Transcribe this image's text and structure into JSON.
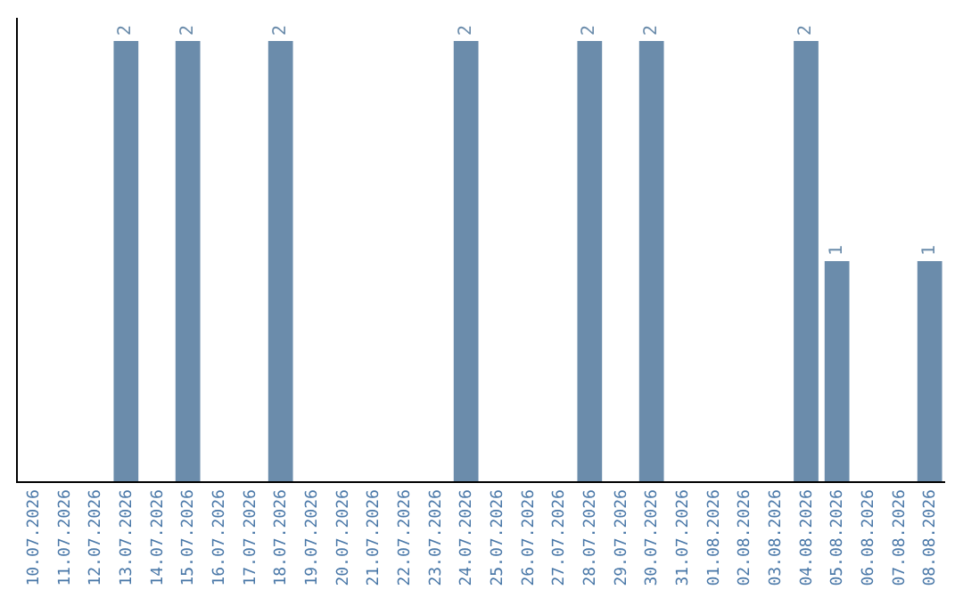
{
  "chart_data": {
    "type": "bar",
    "categories": [
      "10.07.2026",
      "11.07.2026",
      "12.07.2026",
      "13.07.2026",
      "14.07.2026",
      "15.07.2026",
      "16.07.2026",
      "17.07.2026",
      "18.07.2026",
      "19.07.2026",
      "20.07.2026",
      "21.07.2026",
      "22.07.2026",
      "23.07.2026",
      "24.07.2026",
      "25.07.2026",
      "26.07.2026",
      "27.07.2026",
      "28.07.2026",
      "29.07.2026",
      "30.07.2026",
      "31.07.2026",
      "01.08.2026",
      "02.08.2026",
      "03.08.2026",
      "04.08.2026",
      "05.08.2026",
      "06.08.2026",
      "07.08.2026",
      "08.08.2026"
    ],
    "values": [
      0,
      0,
      0,
      2,
      0,
      2,
      0,
      0,
      2,
      0,
      0,
      0,
      0,
      0,
      2,
      0,
      0,
      0,
      2,
      0,
      2,
      0,
      0,
      0,
      0,
      2,
      1,
      0,
      0,
      1
    ],
    "value_labels": [
      null,
      null,
      null,
      "2",
      null,
      "2",
      null,
      null,
      "2",
      null,
      null,
      null,
      null,
      null,
      "2",
      null,
      null,
      null,
      "2",
      null,
      "2",
      null,
      null,
      null,
      null,
      "2",
      "1",
      null,
      null,
      "1"
    ],
    "color": "#6b8cab"
  }
}
